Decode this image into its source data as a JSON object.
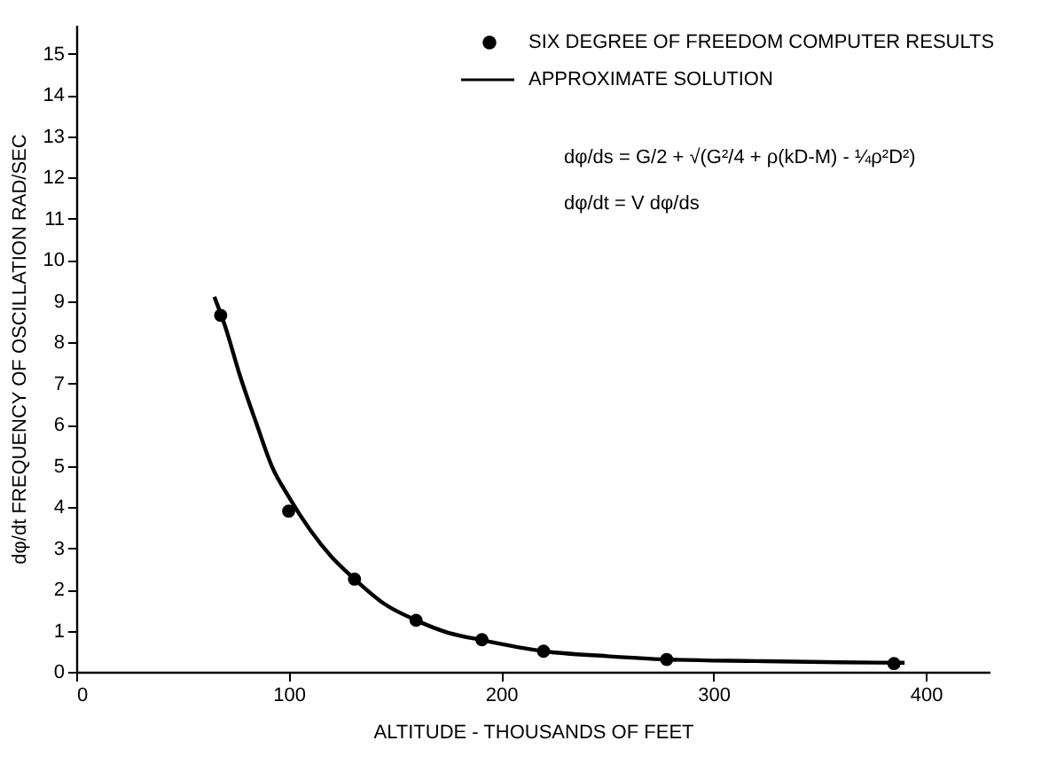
{
  "chart_data": {
    "type": "scatter",
    "xlabel": "ALTITUDE - THOUSANDS OF FEET",
    "ylabel": "dφ/dt FREQUENCY OF OSCILLATION RAD/SEC",
    "xlim": [
      0,
      430
    ],
    "ylim": [
      0,
      15.7
    ],
    "xticks": [
      0,
      100,
      200,
      300,
      400
    ],
    "yticks": [
      0,
      1,
      2,
      3,
      4,
      5,
      6,
      7,
      8,
      9,
      10,
      11,
      12,
      13,
      14,
      15
    ],
    "grid": false,
    "legend": "top right",
    "marker": "circle",
    "annotations": [
      "dφ/ds = G/2 + √(G²/4 + ρ(kD-M) - ¼ρ²D²)",
      "dφ/dt = V dφ/ds"
    ],
    "series": [
      {
        "name": "SIX DEGREE OF FREEDOM COMPUTER RESULTS",
        "color": "#000000",
        "x": [
          68,
          100,
          131,
          160,
          191,
          220,
          278,
          385
        ],
        "values": [
          8.65,
          3.9,
          2.25,
          1.25,
          0.78,
          0.5,
          0.3,
          0.2
        ]
      },
      {
        "name": "APPROXIMATE SOLUTION",
        "type": "line",
        "marker": "none",
        "color": "#000000",
        "x": [
          65,
          70,
          77,
          85,
          92,
          100,
          110,
          120,
          131,
          145,
          160,
          175,
          191,
          220,
          250,
          278,
          320,
          360,
          390
        ],
        "values": [
          9.1,
          8.4,
          7.2,
          6.0,
          5.0,
          4.25,
          3.45,
          2.8,
          2.25,
          1.65,
          1.25,
          0.95,
          0.77,
          0.5,
          0.38,
          0.3,
          0.26,
          0.23,
          0.22
        ]
      }
    ]
  }
}
